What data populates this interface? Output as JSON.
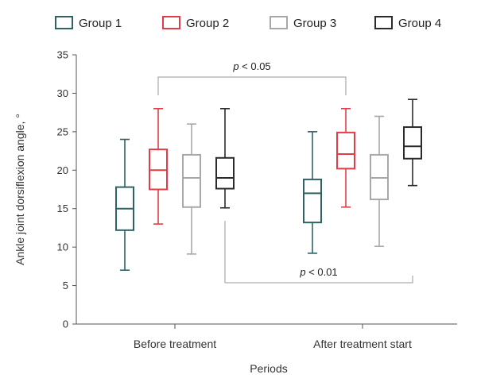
{
  "chart_data": {
    "type": "boxplot",
    "xlabel": "Periods",
    "ylabel": "Ankle joint dorsiflexion angle, °",
    "ylim": [
      0,
      35
    ],
    "yticks": [
      0,
      5,
      10,
      15,
      20,
      25,
      30,
      35
    ],
    "categories": [
      "Before treatment",
      "After treatment start"
    ],
    "legend_position": "top",
    "series": [
      {
        "name": "Group 1",
        "color": "#2e6265",
        "boxes": [
          {
            "min": 7,
            "q1": 12.2,
            "median": 15,
            "q3": 17.8,
            "max": 24
          },
          {
            "min": 9.2,
            "q1": 13.2,
            "median": 17,
            "q3": 18.8,
            "max": 25
          }
        ]
      },
      {
        "name": "Group 2",
        "color": "#e23d46",
        "boxes": [
          {
            "min": 13,
            "q1": 17.5,
            "median": 20,
            "q3": 22.7,
            "max": 28
          },
          {
            "min": 15.2,
            "q1": 20.2,
            "median": 22.1,
            "q3": 24.9,
            "max": 28
          }
        ]
      },
      {
        "name": "Group 3",
        "color": "#a8a8a8",
        "boxes": [
          {
            "min": 9.1,
            "q1": 15.2,
            "median": 19,
            "q3": 22,
            "max": 26
          },
          {
            "min": 10.1,
            "q1": 16.2,
            "median": 19,
            "q3": 22,
            "max": 27
          }
        ]
      },
      {
        "name": "Group 4",
        "color": "#2b2b2b",
        "boxes": [
          {
            "min": 15.1,
            "q1": 17.6,
            "median": 19,
            "q3": 21.6,
            "max": 28
          },
          {
            "min": 18,
            "q1": 21.5,
            "median": 23.1,
            "q3": 25.6,
            "max": 29.2
          }
        ]
      }
    ],
    "annotations": [
      {
        "p": "p",
        "rest": " < 0.05",
        "from": {
          "category": 0,
          "series": 1
        },
        "to": {
          "category": 1,
          "series": 1
        },
        "position": "above"
      },
      {
        "p": "p",
        "rest": " < 0.01",
        "from": {
          "category": 0,
          "series": 3
        },
        "to": {
          "category": 1,
          "series": 3
        },
        "position": "below"
      }
    ]
  }
}
